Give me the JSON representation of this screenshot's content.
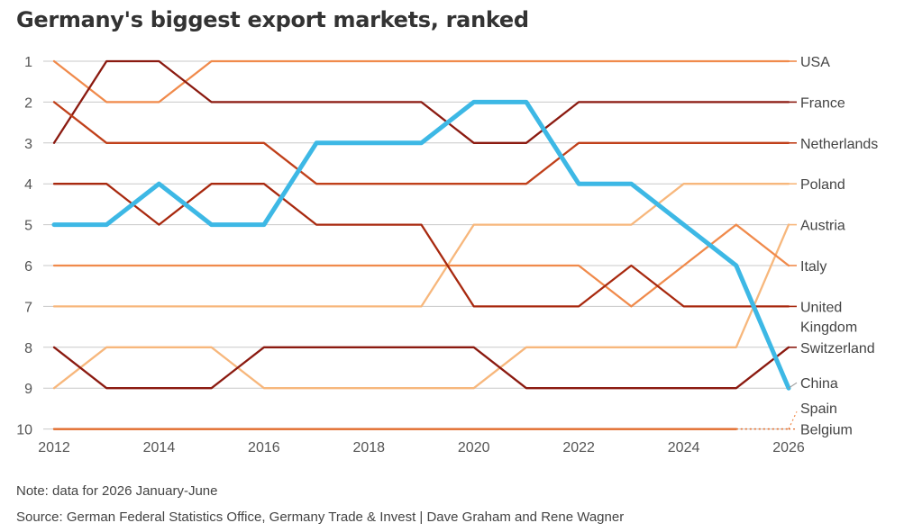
{
  "chart_data": {
    "type": "line",
    "title": "Germany's biggest export markets, ranked",
    "x": [
      2012,
      2013,
      2014,
      2015,
      2016,
      2017,
      2018,
      2019,
      2020,
      2021,
      2022,
      2023,
      2024,
      2025,
      2026
    ],
    "x_ticks": [
      "2012",
      "2014",
      "2016",
      "2018",
      "2020",
      "2022",
      "2024",
      "2026"
    ],
    "y_ticks": [
      "1",
      "2",
      "3",
      "4",
      "5",
      "6",
      "7",
      "8",
      "9",
      "10"
    ],
    "ylim": [
      1,
      10
    ],
    "y_inverted": true,
    "grid": "horizontal",
    "legend": "direct labels at right",
    "series": [
      {
        "name": "USA",
        "color": "#f08a4b",
        "highlight": false,
        "values": [
          1,
          2,
          2,
          1,
          1,
          1,
          1,
          1,
          1,
          1,
          1,
          1,
          1,
          1,
          1
        ]
      },
      {
        "name": "France",
        "color": "#8b1a10",
        "highlight": false,
        "values": [
          3,
          1,
          1,
          2,
          2,
          2,
          2,
          2,
          3,
          3,
          2,
          2,
          2,
          2,
          2
        ]
      },
      {
        "name": "Netherlands",
        "color": "#c0401a",
        "highlight": false,
        "values": [
          2,
          3,
          3,
          3,
          3,
          4,
          4,
          4,
          4,
          4,
          3,
          3,
          3,
          3,
          3
        ]
      },
      {
        "name": "Poland",
        "color": "#f7b77c",
        "highlight": false,
        "values": [
          7,
          7,
          7,
          7,
          7,
          7,
          7,
          7,
          5,
          5,
          5,
          5,
          4,
          4,
          4
        ]
      },
      {
        "name": "Austria",
        "color": "#f7b77c",
        "highlight": false,
        "values": [
          9,
          8,
          8,
          8,
          9,
          9,
          9,
          9,
          9,
          8,
          8,
          8,
          8,
          8,
          5
        ]
      },
      {
        "name": "Italy",
        "color": "#f08a4b",
        "highlight": false,
        "values": [
          6,
          6,
          6,
          6,
          6,
          6,
          6,
          6,
          6,
          6,
          6,
          7,
          6,
          5,
          6
        ]
      },
      {
        "name": "United Kingdom",
        "color": "#a8290f",
        "highlight": false,
        "values": [
          4,
          4,
          5,
          4,
          4,
          5,
          5,
          5,
          7,
          7,
          7,
          6,
          7,
          7,
          7
        ]
      },
      {
        "name": "Switzerland",
        "color": "#8b1a10",
        "highlight": false,
        "values": [
          8,
          9,
          9,
          9,
          8,
          8,
          8,
          8,
          8,
          9,
          9,
          9,
          9,
          9,
          8
        ]
      },
      {
        "name": "China",
        "color": "#3db8e5",
        "highlight": true,
        "values": [
          5,
          5,
          4,
          5,
          5,
          3,
          3,
          3,
          2,
          2,
          4,
          4,
          5,
          6,
          9
        ]
      },
      {
        "name": "Spain",
        "color": "#f08a4b",
        "highlight": false,
        "dotted_from": 2025,
        "values": [
          10,
          10,
          10,
          10,
          10,
          10,
          10,
          10,
          10,
          10,
          10,
          10,
          10,
          10,
          10
        ]
      },
      {
        "name": "Belgium",
        "color": "#e06a2a",
        "highlight": false,
        "dotted_from": 2025,
        "values": [
          10,
          10,
          10,
          10,
          10,
          10,
          10,
          10,
          10,
          10,
          10,
          10,
          10,
          10,
          10
        ]
      }
    ],
    "labels": [
      {
        "series": "USA",
        "lines": [
          "USA"
        ]
      },
      {
        "series": "France",
        "lines": [
          "France"
        ]
      },
      {
        "series": "Netherlands",
        "lines": [
          "Netherlands"
        ]
      },
      {
        "series": "Poland",
        "lines": [
          "Poland"
        ]
      },
      {
        "series": "Austria",
        "lines": [
          "Austria"
        ]
      },
      {
        "series": "Italy",
        "lines": [
          "Italy"
        ]
      },
      {
        "series": "United Kingdom",
        "lines": [
          "United",
          "Kingdom"
        ]
      },
      {
        "series": "Switzerland",
        "lines": [
          "Switzerland"
        ]
      },
      {
        "series": "China",
        "lines": [
          "China"
        ]
      },
      {
        "series": "Spain",
        "lines": [
          "Spain"
        ]
      },
      {
        "series": "Belgium",
        "lines": [
          "Belgium"
        ]
      }
    ]
  },
  "footer": {
    "note": "Note: data for 2026 January-June",
    "source": "Source: German Federal Statistics Office, Germany Trade & Invest | Dave Graham and Rene Wagner"
  }
}
